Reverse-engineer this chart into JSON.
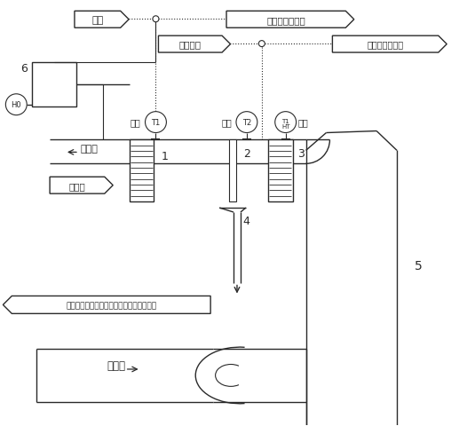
{
  "bg_color": "#ffffff",
  "lc": "#2a2a2a",
  "lw": 1.0,
  "fig_w": 5.26,
  "fig_h": 4.81,
  "dpi": 100,
  "labels": {
    "hot_src": "热源",
    "heat_sys": "循环回余热系统",
    "plant_w": "电厂来水",
    "plant_wsys": "去电厂用水系统",
    "clean_flue": "净烟气",
    "flush_w": "冲洗水",
    "recycle": "回用至石膏滤饼冲洗、制浆系统或滤水系统",
    "raw_flue": "原烟气",
    "n6": "6",
    "n5": "5",
    "n4": "4",
    "n1": "1",
    "n2": "2",
    "n3": "3",
    "meas": "测点",
    "t1": "T1",
    "t2": "T2",
    "tht": "T1\nHT",
    "h0": "H0"
  }
}
